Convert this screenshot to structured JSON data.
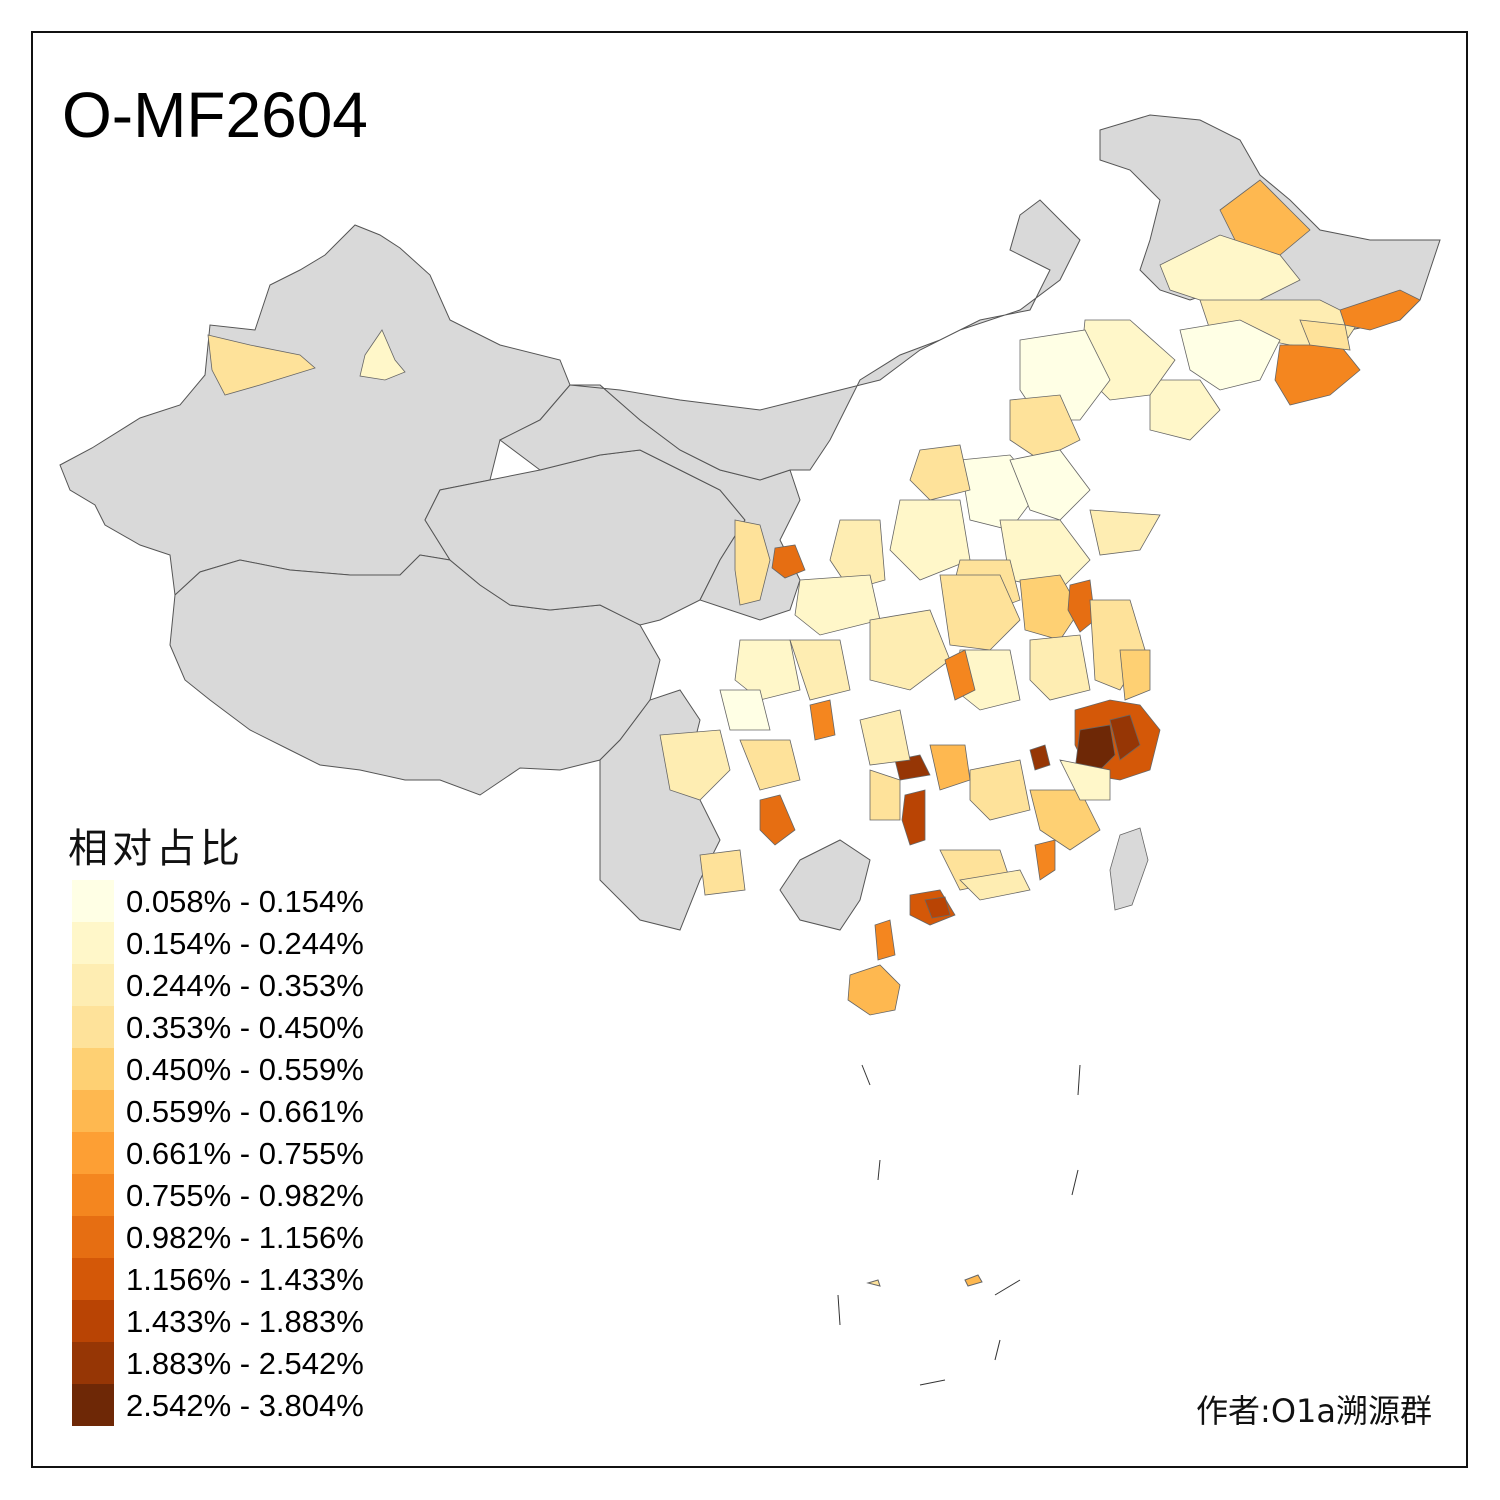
{
  "title": "O-MF2604",
  "legend": {
    "title": "相对占比",
    "items": [
      {
        "label": "0.058% - 0.154%",
        "color": "#FFFFE5"
      },
      {
        "label": "0.154% - 0.244%",
        "color": "#FFF7C9"
      },
      {
        "label": "0.244% - 0.353%",
        "color": "#FEEDB2"
      },
      {
        "label": "0.353% - 0.450%",
        "color": "#FEE29A"
      },
      {
        "label": "0.450% - 0.559%",
        "color": "#FED073"
      },
      {
        "label": "0.559% - 0.661%",
        "color": "#FEB850"
      },
      {
        "label": "0.661% - 0.755%",
        "color": "#FD9F34"
      },
      {
        "label": "0.755% - 0.982%",
        "color": "#F4861F"
      },
      {
        "label": "0.982% - 1.156%",
        "color": "#E66E12"
      },
      {
        "label": "1.156% - 1.433%",
        "color": "#D45808"
      },
      {
        "label": "1.433% - 1.883%",
        "color": "#B94404"
      },
      {
        "label": "1.883% - 2.542%",
        "color": "#963605"
      },
      {
        "label": "2.542% - 3.804%",
        "color": "#6E2806"
      }
    ]
  },
  "author": "作者:O1a溯源群",
  "colors": {
    "no_data": "#D9D9D9",
    "border": "#555555"
  }
}
